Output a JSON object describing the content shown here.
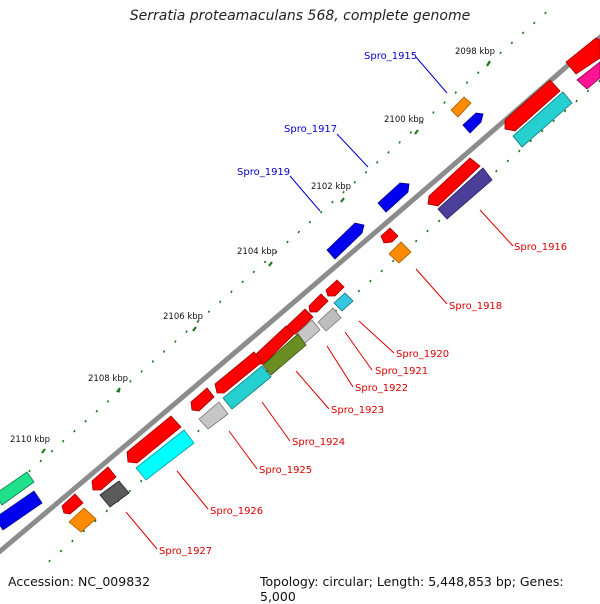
{
  "title": "Serratia proteamaculans 568, complete genome",
  "accession": "Accession: NC_009832",
  "topology": "Topology: circular; Length: 5,448,853 bp; Genes: 5,000",
  "colors": {
    "backbone": "#8c8c8c",
    "forward_label": "#0000cc",
    "reverse_label": "#dd0000",
    "tick": "#1f7a1f"
  },
  "kbp_labels": [
    "2098 kbp",
    "2100 kbp",
    "2102 kbp",
    "2104 kbp",
    "2106 kbp",
    "2108 kbp",
    "2110 kbp"
  ],
  "gene_labels": {
    "forward": [
      "Spro_1915",
      "Spro_1917",
      "Spro_1919"
    ],
    "reverse": [
      "Spro_1916",
      "Spro_1918",
      "Spro_1920",
      "Spro_1921",
      "Spro_1922",
      "Spro_1923",
      "Spro_1924",
      "Spro_1925",
      "Spro_1926",
      "Spro_1927"
    ]
  }
}
